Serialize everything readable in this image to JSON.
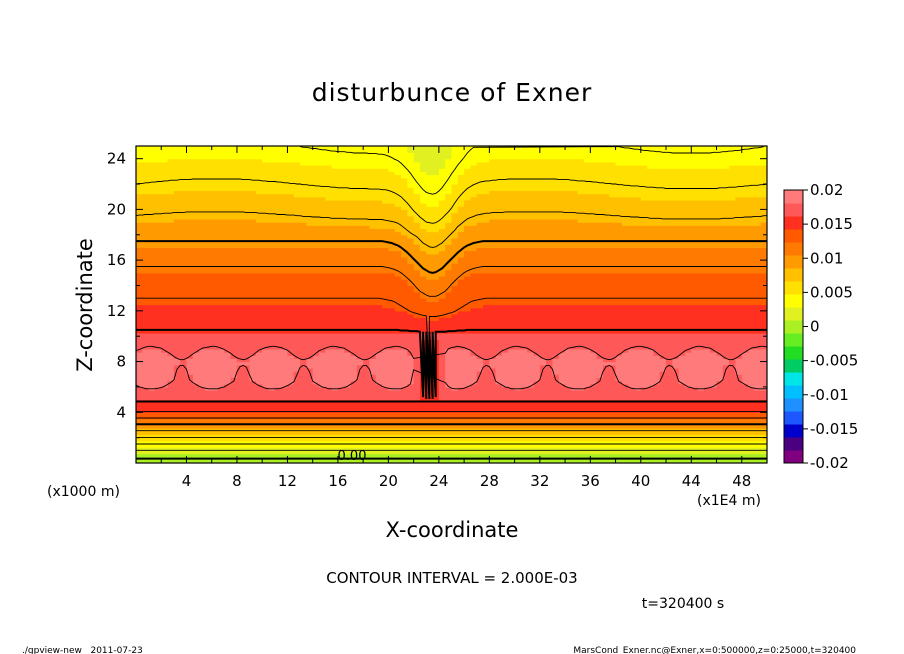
{
  "chart_data": {
    "type": "heatmap",
    "title": "disturbunce of Exner",
    "xlabel": "X-coordinate",
    "ylabel": "Z-coordinate",
    "x_ticks": [
      "4",
      "8",
      "12",
      "16",
      "20",
      "24",
      "28",
      "32",
      "36",
      "40",
      "44",
      "48"
    ],
    "y_ticks": [
      "4",
      "8",
      "12",
      "16",
      "20",
      "24"
    ],
    "x_unit_left": "(x1000 m)",
    "x_unit_right": "(x1E4 m)",
    "xlim": [
      0,
      50
    ],
    "ylim": [
      0,
      25
    ],
    "colorbar_ticks": [
      "0.02",
      "0.015",
      "0.01",
      "0.005",
      "0",
      "-0.005",
      "-0.01",
      "-0.015",
      "-0.02"
    ],
    "colorbar_range": [
      -0.02,
      0.02
    ],
    "contour_interval_label": "CONTOUR INTERVAL = 2.000E-03",
    "contour_label": "0.00",
    "time_label": "t=320400 s",
    "color_levels": [
      "#800080",
      "#4b0082",
      "#0000cd",
      "#1e56ff",
      "#1e90ff",
      "#00bfff",
      "#00e5e5",
      "#00cc66",
      "#22dd22",
      "#66ee22",
      "#aaf022",
      "#e0f020",
      "#ffff00",
      "#ffe000",
      "#ffc000",
      "#ff9a00",
      "#ff7a00",
      "#ff5a00",
      "#ff3020",
      "#ff5858",
      "#ff7a7a"
    ],
    "profile": [
      {
        "z": 0.0,
        "v": -0.001
      },
      {
        "z": 0.5,
        "v": 0.0005
      },
      {
        "z": 1.0,
        "v": 0.002
      },
      {
        "z": 1.5,
        "v": 0.004
      },
      {
        "z": 2.0,
        "v": 0.006
      },
      {
        "z": 2.5,
        "v": 0.008
      },
      {
        "z": 3.0,
        "v": 0.01
      },
      {
        "z": 3.5,
        "v": 0.012
      },
      {
        "z": 4.0,
        "v": 0.014
      },
      {
        "z": 5.0,
        "v": 0.0165
      },
      {
        "z": 6.5,
        "v": 0.0185
      },
      {
        "z": 8.0,
        "v": 0.019
      },
      {
        "z": 10.0,
        "v": 0.0165
      },
      {
        "z": 12.0,
        "v": 0.0145
      },
      {
        "z": 14.0,
        "v": 0.0135
      },
      {
        "z": 16.0,
        "v": 0.0115
      },
      {
        "z": 18.0,
        "v": 0.0095
      },
      {
        "z": 20.0,
        "v": 0.0075
      },
      {
        "z": 22.0,
        "v": 0.006
      },
      {
        "z": 24.0,
        "v": 0.0045
      },
      {
        "z": 25.0,
        "v": 0.004
      }
    ]
  },
  "footer": {
    "left": "./gpview-new   2011-07-23",
    "right": "MarsCond_Exner.nc@Exner,x=0:500000,z=0:25000,t=320400"
  }
}
